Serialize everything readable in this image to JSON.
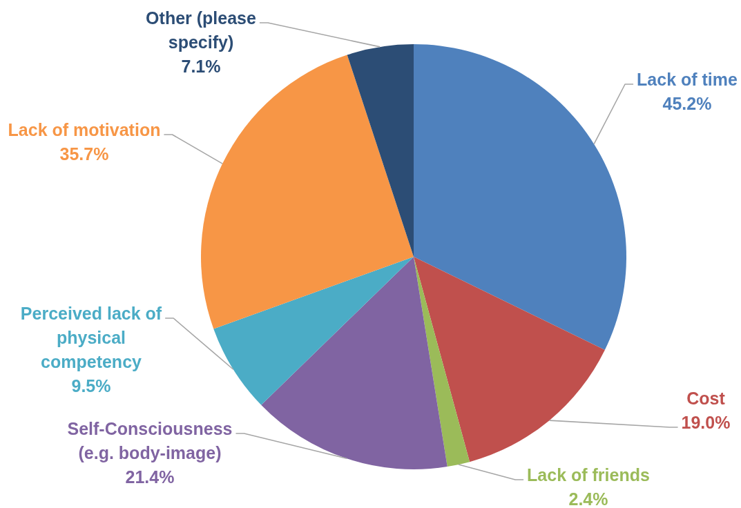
{
  "chart_data": {
    "type": "pie",
    "categories": [
      "Lack of time",
      "Cost",
      "Lack of friends",
      "Self-Consciousness (e.g. body-image)",
      "Perceived lack of physical competency",
      "Lack of motivation",
      "Other (please specify)"
    ],
    "values": [
      45.2,
      19.0,
      2.4,
      21.4,
      9.5,
      35.7,
      7.1
    ],
    "value_labels": [
      "45.2%",
      "19.0%",
      "2.4%",
      "21.4%",
      "9.5%",
      "35.7%",
      "7.1%"
    ],
    "colors": [
      "#4f81bd",
      "#c0504d",
      "#9bbb59",
      "#8064a2",
      "#4bacc6",
      "#f79646",
      "#2c4d75"
    ]
  }
}
